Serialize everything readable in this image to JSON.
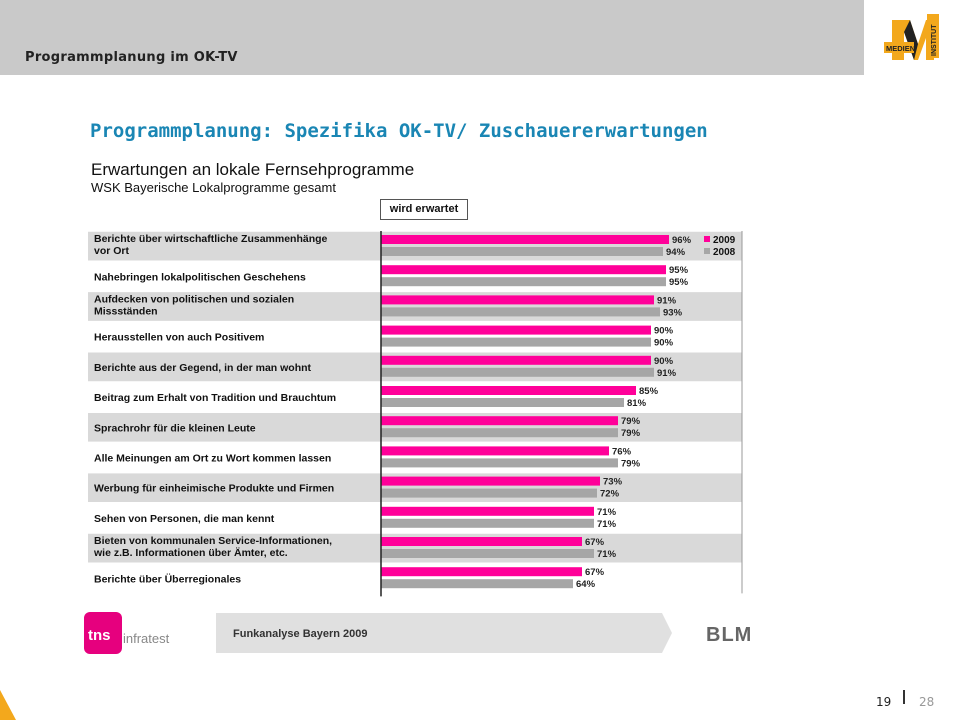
{
  "header": {
    "title": "Programmplanung im OK-TV",
    "logo_text_top": "MEDIEN",
    "logo_text_side": "INSTITUT"
  },
  "slide": {
    "title": "Programmplanung: Spezifika OK-TV/ Zuschauererwartungen"
  },
  "chart_data": {
    "type": "bar",
    "orientation": "horizontal",
    "title": "Erwartungen an lokale Fernsehprogramme",
    "subtitle": "WSK Bayerische Lokalprogramme gesamt",
    "column_header": "wird erwartet",
    "categories": [
      "Berichte über wirtschaftliche Zusammenhänge vor Ort",
      "Nahebringen lokalpolitischen Geschehens",
      "Aufdecken von politischen und sozialen Missständen",
      "Herausstellen von auch Positivem",
      "Berichte aus der Gegend, in der man wohnt",
      "Beitrag zum Erhalt von Tradition und Brauchtum",
      "Sprachrohr für die kleinen Leute",
      "Alle Meinungen am Ort zu Wort kommen lassen",
      "Werbung für einheimische Produkte und Firmen",
      "Sehen von Personen, die man kennt",
      "Bieten von kommunalen Service-Informationen, wie z.B. Informationen über Ämter, etc.",
      "Berichte über Überregionales"
    ],
    "category_lines": [
      [
        "Berichte über wirtschaftliche Zusammenhänge",
        "vor Ort"
      ],
      [
        "Nahebringen lokalpolitischen Geschehens"
      ],
      [
        "Aufdecken von politischen und sozialen",
        "Missständen"
      ],
      [
        "Herausstellen von auch Positivem"
      ],
      [
        "Berichte aus der Gegend, in der man wohnt"
      ],
      [
        "Beitrag zum Erhalt von Tradition und Brauchtum"
      ],
      [
        "Sprachrohr für die kleinen Leute"
      ],
      [
        "Alle Meinungen am Ort zu Wort kommen lassen"
      ],
      [
        "Werbung für einheimische Produkte und Firmen"
      ],
      [
        "Sehen von Personen, die man kennt"
      ],
      [
        "Bieten von kommunalen Service-Informationen,",
        "wie z.B. Informationen über Ämter, etc."
      ],
      [
        "Berichte über Überregionales"
      ]
    ],
    "series": [
      {
        "name": "2009",
        "color": "#ff0099",
        "values": [
          96,
          95,
          91,
          90,
          90,
          85,
          79,
          76,
          73,
          71,
          67,
          67
        ]
      },
      {
        "name": "2008",
        "color": "#a6a6a6",
        "values": [
          94,
          95,
          93,
          90,
          91,
          81,
          79,
          79,
          72,
          71,
          71,
          64
        ]
      }
    ],
    "value_suffix": "%",
    "xlim": [
      0,
      100
    ],
    "legend_position": "top-right",
    "row_shading": [
      "#d9d9d9",
      "#ffffff"
    ]
  },
  "footer": {
    "source": "Funkanalyse Bayern 2009",
    "tns_brand": "tns",
    "tns_sub": "infratest",
    "blm": "BLM"
  },
  "page": {
    "number": "19",
    "total": "28"
  }
}
